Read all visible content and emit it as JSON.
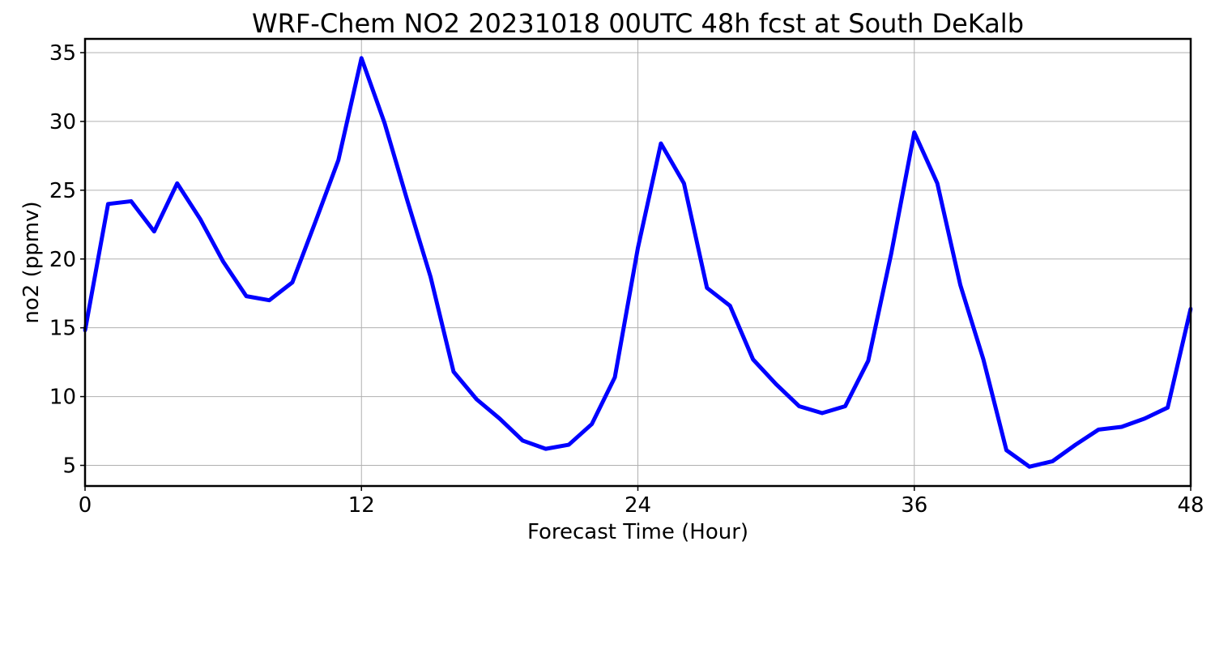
{
  "chart_data": {
    "type": "line",
    "title": "WRF-Chem NO2  20231018 00UTC 48h fcst at South DeKalb",
    "xlabel": "Forecast Time (Hour)",
    "ylabel": "no2  (ppmv)",
    "xlim": [
      0,
      48
    ],
    "ylim": [
      3.5,
      36
    ],
    "xticks": [
      0,
      12,
      24,
      36,
      48
    ],
    "yticks": [
      5,
      10,
      15,
      20,
      25,
      30,
      35
    ],
    "grid": true,
    "series": [
      {
        "color": "#0000ff",
        "x": [
          0,
          1,
          2,
          3,
          4,
          5,
          6,
          7,
          8,
          9,
          10,
          11,
          12,
          13,
          14,
          15,
          16,
          17,
          18,
          19,
          20,
          21,
          22,
          23,
          24,
          25,
          26,
          27,
          28,
          29,
          30,
          31,
          32,
          33,
          34,
          35,
          36,
          37,
          38,
          39,
          40,
          41,
          42,
          43,
          44,
          45,
          46,
          47,
          48
        ],
        "values": [
          14.8,
          24.0,
          24.2,
          22.0,
          25.5,
          22.9,
          19.8,
          17.3,
          17.0,
          18.3,
          22.7,
          27.2,
          34.6,
          29.9,
          24.2,
          18.7,
          11.8,
          9.8,
          8.4,
          6.8,
          6.2,
          6.5,
          8.0,
          11.4,
          20.8,
          28.4,
          25.5,
          17.9,
          16.6,
          12.7,
          10.9,
          9.3,
          8.8,
          9.3,
          12.6,
          20.4,
          29.2,
          25.5,
          18.1,
          12.7,
          6.1,
          4.9,
          5.3,
          6.5,
          7.6,
          7.8,
          8.4,
          9.2,
          16.4
        ]
      }
    ]
  }
}
